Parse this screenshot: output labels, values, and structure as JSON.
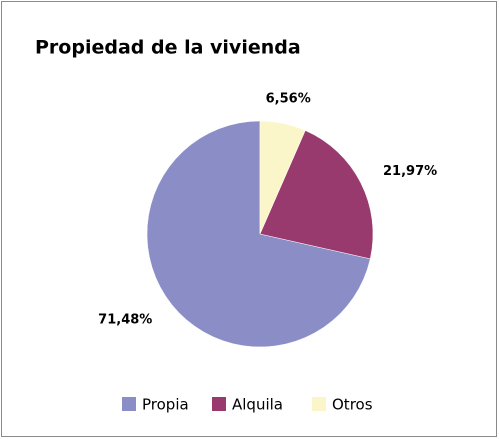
{
  "chart_data": {
    "type": "pie",
    "title": "Propiedad de la vivienda",
    "categories": [
      "Propia",
      "Alquila",
      "Otros"
    ],
    "values": [
      71.48,
      21.97,
      6.56
    ],
    "value_labels": [
      "71,48%",
      "21,97%",
      "6,56%"
    ],
    "colors": [
      "#8b8ec6",
      "#983a6e",
      "#fbf6c9"
    ],
    "legend": "bottom"
  }
}
